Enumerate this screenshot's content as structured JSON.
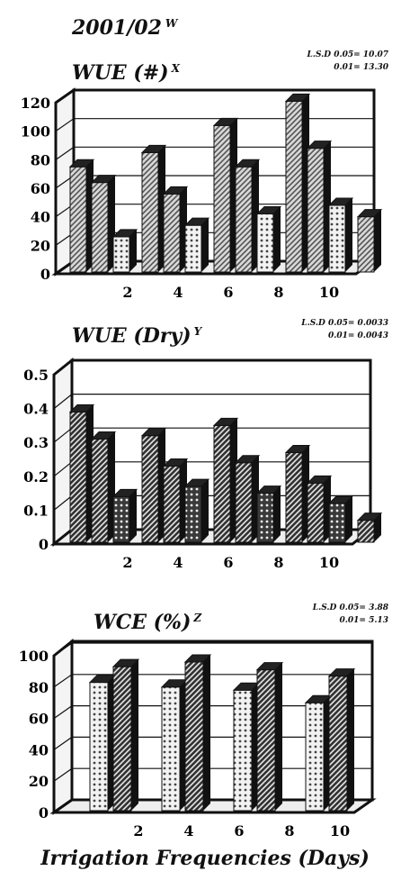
{
  "header": {
    "year": "2001/02",
    "year_sup": "W"
  },
  "footer": {
    "xlabel": "Irrigation Frequencies (Days)"
  },
  "chart_data": [
    {
      "type": "bar",
      "title": "WUE (#)",
      "title_sup": "X",
      "lsd": [
        "L.S.D 0.05= 10.07",
        "0.01= 13.30"
      ],
      "yticks": [
        "0",
        "20",
        "40",
        "60",
        "80",
        "100",
        "120"
      ],
      "ylim": [
        0,
        120
      ],
      "xticks": [
        "2",
        "4",
        "6",
        "8",
        "10"
      ],
      "series": [
        {
          "values": [
            75,
            85,
            104,
            121,
            40
          ],
          "pattern": "diag-light"
        },
        {
          "values": [
            64,
            56,
            75,
            88
          ],
          "pattern": "diag-light"
        },
        {
          "values": [
            26,
            34,
            42,
            48
          ],
          "pattern": "dots-light"
        }
      ]
    },
    {
      "type": "bar",
      "title": "WUE (Dry)",
      "title_sup": "Y",
      "lsd": [
        "L.S.D 0.05= 0.0033",
        "0.01= 0.0043"
      ],
      "yticks": [
        "0",
        "0.1",
        "0.2",
        "0.3",
        "0.4",
        "0.5"
      ],
      "ylim": [
        0,
        0.5
      ],
      "xticks": [
        "2",
        "4",
        "6",
        "8",
        "10"
      ],
      "series": [
        {
          "values": [
            0.39,
            0.32,
            0.35,
            0.27,
            0.07
          ],
          "pattern": "diag-dark"
        },
        {
          "values": [
            0.31,
            0.23,
            0.24,
            0.18
          ],
          "pattern": "diag-dark"
        },
        {
          "values": [
            0.14,
            0.17,
            0.15,
            0.12
          ],
          "pattern": "dots-dark"
        }
      ]
    },
    {
      "type": "bar",
      "title": "WCE (%)",
      "title_sup": "Z",
      "lsd": [
        "L.S.D 0.05= 3.88",
        "0.01= 5.13"
      ],
      "yticks": [
        "0",
        "20",
        "40",
        "60",
        "80",
        "100"
      ],
      "ylim": [
        0,
        100
      ],
      "xticks": [
        "2",
        "4",
        "6",
        "8",
        "10"
      ],
      "series": [
        {
          "values": [
            83,
            80,
            78,
            70
          ],
          "pattern": "dots-light"
        },
        {
          "values": [
            93,
            96,
            91,
            87
          ],
          "pattern": "diag-dark"
        }
      ]
    }
  ]
}
